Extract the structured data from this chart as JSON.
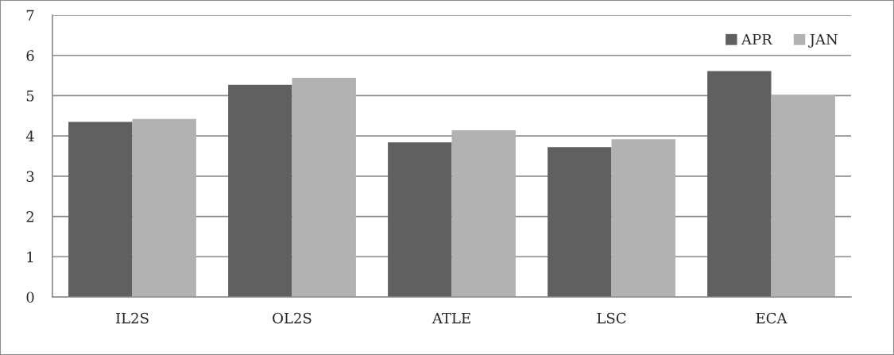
{
  "chart_data": {
    "type": "bar",
    "categories": [
      "IL2S",
      "OL2S",
      "ATLE",
      "LSC",
      "ECA"
    ],
    "series": [
      {
        "name": "APR",
        "color": "#606060",
        "values": [
          4.35,
          5.27,
          3.84,
          3.72,
          5.61
        ]
      },
      {
        "name": "JAN",
        "color": "#b2b2b2",
        "values": [
          4.42,
          5.44,
          4.14,
          3.92,
          5.02
        ]
      }
    ],
    "ylim": [
      0,
      7
    ],
    "yticks": [
      0,
      1,
      2,
      3,
      4,
      5,
      6,
      7
    ],
    "grid": "y",
    "legend": "top right"
  }
}
